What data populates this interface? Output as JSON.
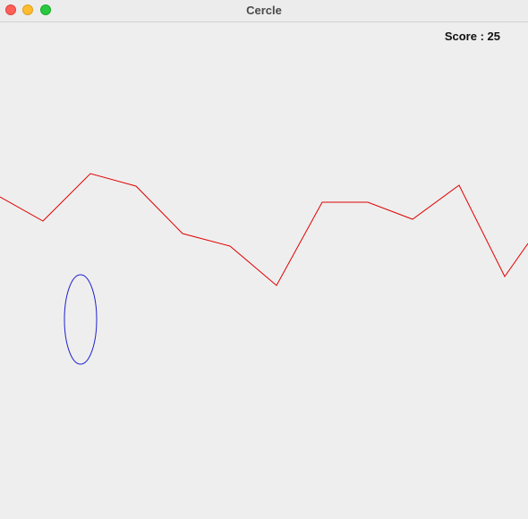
{
  "window": {
    "title": "Cercle"
  },
  "hud": {
    "score_label": "Score",
    "score_separator": " : ",
    "score_value": "25",
    "score_text": "Score : 25"
  },
  "colors": {
    "terrain_line": "#e00000",
    "circle": "#2020d0",
    "background": "#eeeeee"
  },
  "icons": {
    "close": "close-icon",
    "minimize": "minimize-icon",
    "maximize": "maximize-icon"
  }
}
